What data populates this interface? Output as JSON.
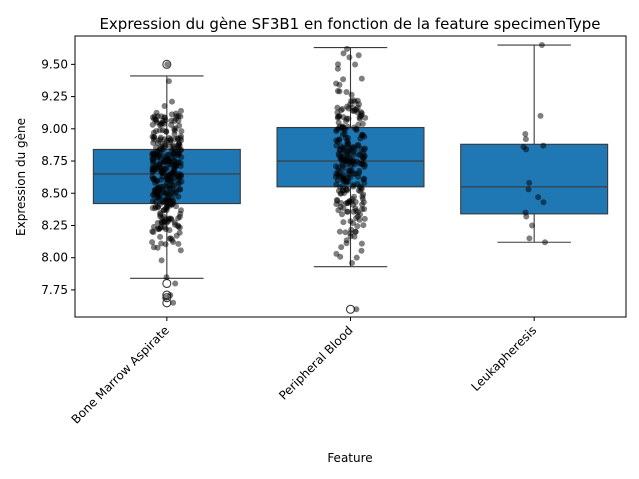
{
  "chart_data": {
    "type": "box",
    "title": "Expression du gène SF3B1 en fonction de la feature specimenType",
    "xlabel": "Feature",
    "ylabel": "Expression du gène",
    "categories": [
      "Bone Marrow Aspirate",
      "Peripheral Blood",
      "Leukapheresis"
    ],
    "ylim": [
      7.54,
      9.72
    ],
    "yticks": [
      7.75,
      8.0,
      8.25,
      8.5,
      8.75,
      9.0,
      9.25,
      9.5
    ],
    "ytick_labels": [
      "7.75",
      "8.00",
      "8.25",
      "8.50",
      "8.75",
      "9.00",
      "9.25",
      "9.50"
    ],
    "box_color": "#1f77b4",
    "point_color": "#000000",
    "boxes": [
      {
        "name": "Bone Marrow Aspirate",
        "q1": 8.42,
        "median": 8.65,
        "q3": 8.84,
        "whisker_low": 7.84,
        "whisker_high": 9.41,
        "outliers": [
          9.5,
          7.8,
          7.71,
          7.69,
          7.65
        ],
        "n_points": 340
      },
      {
        "name": "Peripheral Blood",
        "q1": 8.55,
        "median": 8.75,
        "q3": 9.01,
        "whisker_low": 7.93,
        "whisker_high": 9.63,
        "outliers": [
          7.6
        ],
        "n_points": 260
      },
      {
        "name": "Leukapheresis",
        "q1": 8.34,
        "median": 8.55,
        "q3": 8.88,
        "whisker_low": 8.12,
        "whisker_high": 9.65,
        "outliers": [],
        "points": [
          9.65,
          9.1,
          8.96,
          8.92,
          8.87,
          8.86,
          8.84,
          8.58,
          8.53,
          8.47,
          8.43,
          8.35,
          8.32,
          8.25,
          8.15,
          8.12
        ]
      }
    ]
  }
}
